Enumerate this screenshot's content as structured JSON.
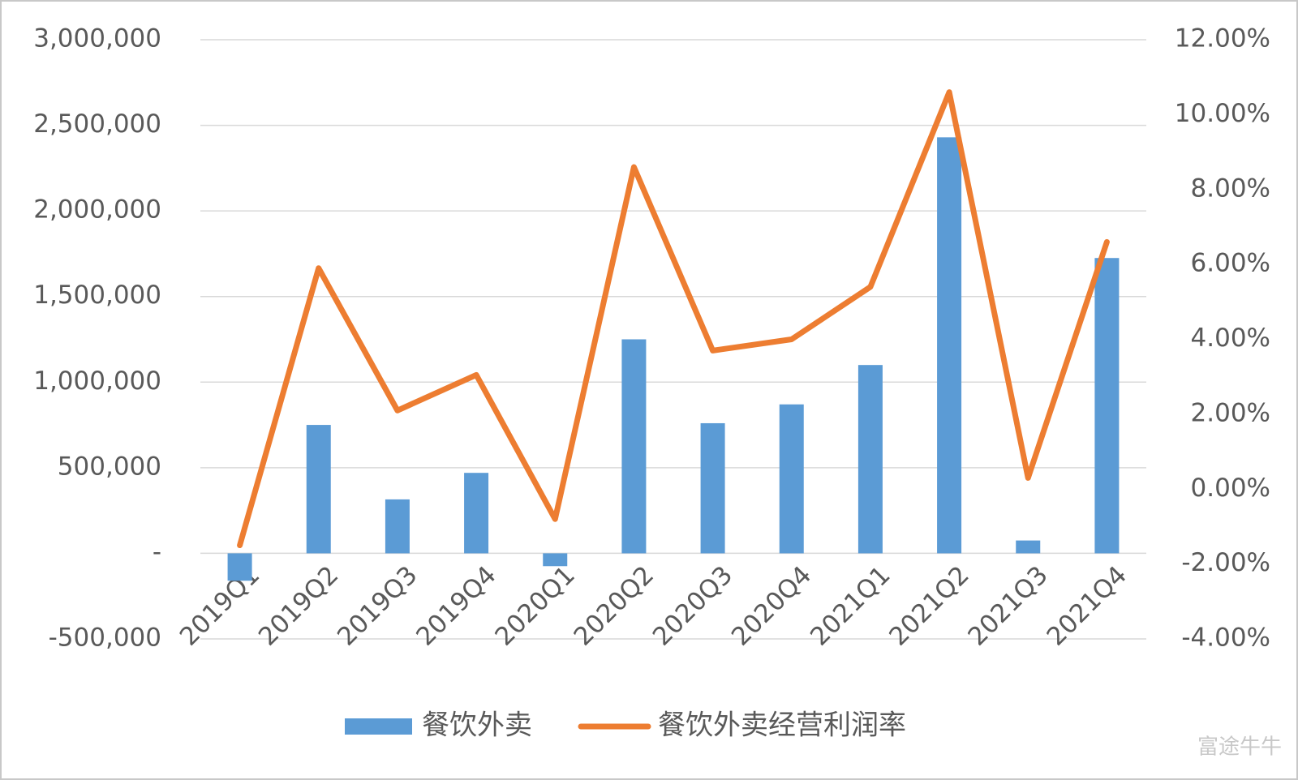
{
  "chart_data": {
    "type": "bar_line",
    "categories": [
      "2019Q1",
      "2019Q2",
      "2019Q3",
      "2019Q4",
      "2020Q1",
      "2020Q2",
      "2020Q3",
      "2020Q4",
      "2021Q1",
      "2021Q2",
      "2021Q3",
      "2021Q4"
    ],
    "series": [
      {
        "name": "餐饮外卖",
        "type": "bar",
        "color": "#5b9bd5",
        "values": [
          -160000,
          750000,
          315000,
          470000,
          -75000,
          1250000,
          760000,
          870000,
          1100000,
          2430000,
          75000,
          1725000
        ]
      },
      {
        "name": "餐饮外卖经营利润率",
        "type": "line",
        "axis": "y2",
        "color": "#ed7d31",
        "values": [
          -1.5,
          5.9,
          2.1,
          3.05,
          -0.8,
          8.6,
          3.7,
          4.0,
          5.4,
          10.6,
          0.3,
          6.6
        ]
      }
    ],
    "ylim": [
      -500000,
      3000000
    ],
    "yticks": [
      {
        "value": -500000,
        "label": "-500,000"
      },
      {
        "value": 0,
        "label": "-"
      },
      {
        "value": 500000,
        "label": "500,000"
      },
      {
        "value": 1000000,
        "label": "1,000,000"
      },
      {
        "value": 1500000,
        "label": "1,500,000"
      },
      {
        "value": 2000000,
        "label": "2,000,000"
      },
      {
        "value": 2500000,
        "label": "2,500,000"
      },
      {
        "value": 3000000,
        "label": "3,000,000"
      }
    ],
    "y2lim": [
      -4,
      12
    ],
    "y2ticks": [
      {
        "value": -4,
        "label": "-4.00%"
      },
      {
        "value": -2,
        "label": "-2.00%"
      },
      {
        "value": 0,
        "label": "0.00%"
      },
      {
        "value": 2,
        "label": "2.00%"
      },
      {
        "value": 4,
        "label": "4.00%"
      },
      {
        "value": 6,
        "label": "6.00%"
      },
      {
        "value": 8,
        "label": "8.00%"
      },
      {
        "value": 10,
        "label": "10.00%"
      },
      {
        "value": 12,
        "label": "12.00%"
      }
    ],
    "grid": true,
    "legend": "bottom",
    "watermark": "富途牛牛"
  }
}
